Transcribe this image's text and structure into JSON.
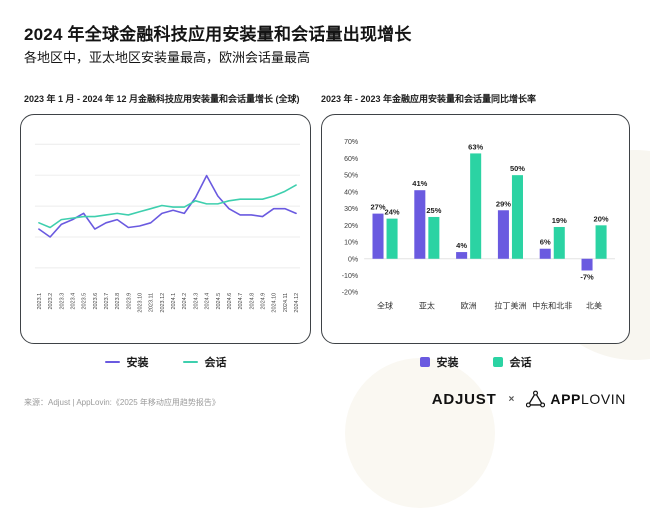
{
  "page": {
    "title": "2024 年全球金融科技应用安装量和会话量出现增长",
    "subtitle": "各地区中，亚太地区安装量最高，欧洲会话量最高",
    "source": "来源：Adjust | AppLovin:《2025 年移动应用趋势报告》"
  },
  "colors": {
    "installs": "#6A5AE0",
    "sessions": "#2BD3A3",
    "grid": "#ececec",
    "axis_text": "#3a3a3a",
    "value_label": "#1e1e1e"
  },
  "line_chart": {
    "caption": "2023 年 1 月 - 2024 年 12 月金融科技应用安装量和会话量增长 (全球)",
    "legend": [
      {
        "label": "安装"
      },
      {
        "label": "会话"
      }
    ]
  },
  "bar_chart": {
    "caption": "2023 年 - 2023 年金融应用安装量和会话量同比增长率",
    "legend": [
      {
        "label": "安装"
      },
      {
        "label": "会话"
      }
    ]
  },
  "logos": {
    "adjust": "ADJUST",
    "separator": "×",
    "applovin_bold": "APP",
    "applovin_light": "LOVIN"
  },
  "chart_data": [
    {
      "type": "line",
      "title": "2023 年 1 月 - 2024 年 12 月金融科技应用安装量和会话量增长 (全球)",
      "x": [
        "2023.1",
        "2023.2",
        "2023.3",
        "2023.4",
        "2023.5",
        "2023.6",
        "2023.7",
        "2023.8",
        "2023.9",
        "2023.10",
        "2023.11",
        "2023.12",
        "2024.1",
        "2024.2",
        "2024.3",
        "2024.4",
        "2024.5",
        "2024.6",
        "2024.7",
        "2024.8",
        "2024.9",
        "2024.10",
        "2024.11",
        "2024.12"
      ],
      "series": [
        {
          "name": "安装",
          "color": "#6A5AE0",
          "values": [
            36,
            31,
            39,
            42,
            46,
            36,
            40,
            42,
            37,
            38,
            40,
            46,
            48,
            46,
            56,
            70,
            57,
            49,
            45,
            45,
            44,
            49,
            49,
            46
          ]
        },
        {
          "name": "会话",
          "color": "#3ECFAE",
          "values": [
            40,
            37,
            42,
            43,
            44,
            44,
            45,
            46,
            45,
            47,
            49,
            51,
            50,
            50,
            54,
            52,
            52,
            54,
            55,
            55,
            55,
            57,
            60,
            64
          ]
        }
      ],
      "ylim": [
        0,
        100
      ],
      "y_axis": "unlabeled (relative growth index, estimated from pixels)",
      "grid": "horizontal, 5 faint lines",
      "legend_position": "bottom"
    },
    {
      "type": "bar",
      "title": "2023 年 - 2023 年金融应用安装量和会话量同比增长率",
      "categories": [
        "全球",
        "亚太",
        "欧洲",
        "拉丁美洲",
        "中东和北非",
        "北美"
      ],
      "series": [
        {
          "name": "安装",
          "color": "#6A5AE0",
          "values": [
            27,
            41,
            4,
            29,
            6,
            -7
          ]
        },
        {
          "name": "会话",
          "color": "#2BD3A3",
          "values": [
            24,
            25,
            63,
            50,
            19,
            20
          ]
        }
      ],
      "ylim": [
        -20,
        70
      ],
      "ytick_step": 10,
      "ytick_labels": [
        "70%",
        "60%",
        "50%",
        "40%",
        "30%",
        "20%",
        "10%",
        "0%",
        "-10%",
        "-20%"
      ],
      "value_label_format": "percent",
      "grid": "zero baseline only",
      "legend_position": "bottom"
    }
  ]
}
